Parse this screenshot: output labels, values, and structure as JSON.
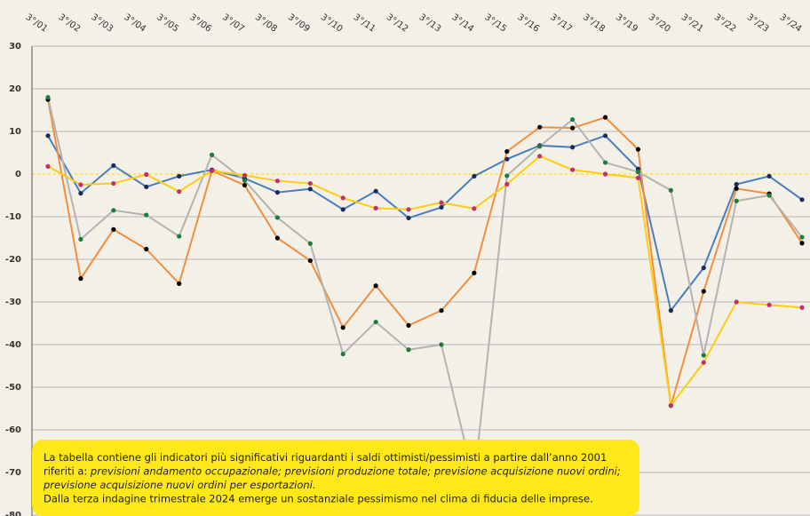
{
  "chart_data": {
    "type": "line",
    "categories": [
      "3°/01",
      "3°/02",
      "3°/03",
      "3°/04",
      "3°/05",
      "3°/06",
      "3°/07",
      "3°/08",
      "3°/09",
      "3°/10",
      "3°/11",
      "3°/12",
      "3°/13",
      "3°/14",
      "3°/15",
      "3°/16",
      "3°/17",
      "3°/18",
      "3°/19",
      "3°/20",
      "3°/21",
      "3°/22",
      "3°/23",
      "3°/24"
    ],
    "series": [
      {
        "color": "#4a7ebb",
        "marker_color": "#1f2a5c",
        "values": [
          9,
          -4.5,
          2,
          -3,
          -0.5,
          1,
          -1,
          -4.3,
          -3.5,
          -8.3,
          -4,
          -10.3,
          -7.8,
          -0.5,
          3.5,
          6.7,
          6.3,
          9,
          1.2,
          -32,
          -22,
          -2.4,
          -0.5,
          -6
        ]
      },
      {
        "color": "#f28e3c",
        "marker_color": "#000000",
        "values": [
          17.5,
          -24.5,
          -13,
          -17.6,
          -25.7,
          0.8,
          -2.6,
          -15,
          -20.3,
          -36,
          -26.2,
          -35.5,
          -32,
          -23.2,
          5.3,
          11,
          10.8,
          13.3,
          5.8,
          -54.3,
          -27.5,
          -3.4,
          -4.6,
          -16.2
        ]
      },
      {
        "color": "#b3b3b3",
        "marker_color": "#1e7b3c",
        "values": [
          18,
          -15.3,
          -8.5,
          -9.6,
          -14.6,
          4.5,
          -1.5,
          -10.2,
          -16.3,
          -42.2,
          -34.7,
          -41.2,
          -40,
          -72,
          -0.4,
          6.5,
          12.8,
          2.7,
          0.5,
          -3.8,
          -42.5,
          -6.3,
          -5,
          -14.8
        ]
      },
      {
        "color": "#ffcc14",
        "marker_color": "#c0306e",
        "values": [
          1.8,
          -2.5,
          -2.2,
          -0.1,
          -4.1,
          0.8,
          -0.3,
          -1.6,
          -2.2,
          -5.6,
          -8,
          -8.3,
          -6.7,
          -8.1,
          -2.4,
          4.2,
          1,
          0,
          -0.9,
          -54.3,
          -44.2,
          -30,
          -30.7,
          -31.3
        ]
      }
    ],
    "ylim": [
      -80,
      30
    ],
    "yticks": [
      30,
      20,
      10,
      0,
      -10,
      -20,
      -30,
      -40,
      -50,
      -60,
      -70,
      -80
    ],
    "grid": true,
    "zero_line_color": "#ffd400",
    "annotation_lines": [
      [
        "La tabella contiene gli indicatori più significativi riguardanti i saldi ottimisti/pessimisti a partire dall’anno 2001"
      ],
      [
        "riferiti a: ",
        "previsioni andamento  occupazionale; previsioni produzione totale; previsione acquisizione nuovi ordini;"
      ],
      [
        "previsione acquisizione nuovi ordini per esportazioni."
      ],
      [
        "Dalla terza indagine trimestrale 2024 emerge un sostanziale pessimismo nel clima di fiducia delle imprese."
      ]
    ],
    "annotation_italic": [
      [
        false
      ],
      [
        false,
        true
      ],
      [
        true
      ],
      [
        false
      ]
    ]
  }
}
